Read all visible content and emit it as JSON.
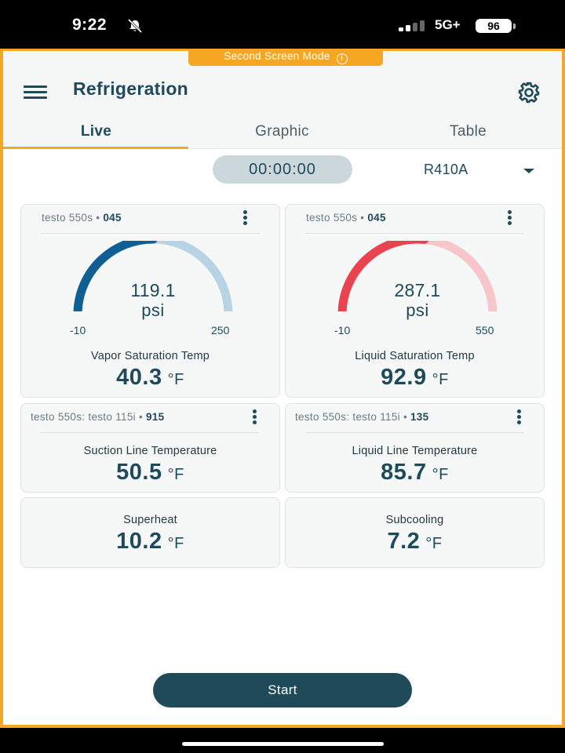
{
  "status_bar": {
    "time": "9:22",
    "network": "5G+",
    "battery": "96",
    "icons": [
      "bell-muted-icon",
      "signal-icon",
      "battery-icon"
    ]
  },
  "banner": {
    "label": "Second Screen Mode",
    "icon": "info-icon"
  },
  "header": {
    "title": "Refrigeration",
    "menu_icon": "hamburger-menu-icon",
    "settings_icon": "gear-icon"
  },
  "tabs": [
    {
      "label": "Live",
      "active": true
    },
    {
      "label": "Graphic",
      "active": false
    },
    {
      "label": "Table",
      "active": false
    }
  ],
  "timer": "00:00:00",
  "refrigerant": {
    "selected": "R410A"
  },
  "gauges": [
    {
      "source": "testo 550s",
      "source_id": "045",
      "value": "119.1",
      "unit": "psi",
      "min": "-10",
      "max": "250",
      "level": 0.5,
      "color": "#0f5e94",
      "track_color": "#b8d3e4",
      "metric_label": "Vapor Saturation Temp",
      "metric_value": "40.3",
      "metric_unit": "°F"
    },
    {
      "source": "testo 550s",
      "source_id": "045",
      "value": "287.1",
      "unit": "psi",
      "min": "-10",
      "max": "550",
      "level": 0.53,
      "color": "#e8434f",
      "track_color": "#f6c6ca",
      "metric_label": "Liquid Saturation Temp",
      "metric_value": "92.9",
      "metric_unit": "°F"
    }
  ],
  "probes": [
    {
      "source": "testo 550s: testo 115i",
      "source_id": "915",
      "label": "Suction Line Temperature",
      "value": "50.5",
      "unit": "°F"
    },
    {
      "source": "testo 550s: testo 115i",
      "source_id": "135",
      "label": "Liquid Line Temperature",
      "value": "85.7",
      "unit": "°F"
    }
  ],
  "calculated": [
    {
      "label": "Superheat",
      "value": "10.2",
      "unit": "°F"
    },
    {
      "label": "Subcooling",
      "value": "7.2",
      "unit": "°F"
    }
  ],
  "start_button": "Start",
  "colors": {
    "accent": "#f5a623",
    "primary": "#1f4a5a"
  }
}
